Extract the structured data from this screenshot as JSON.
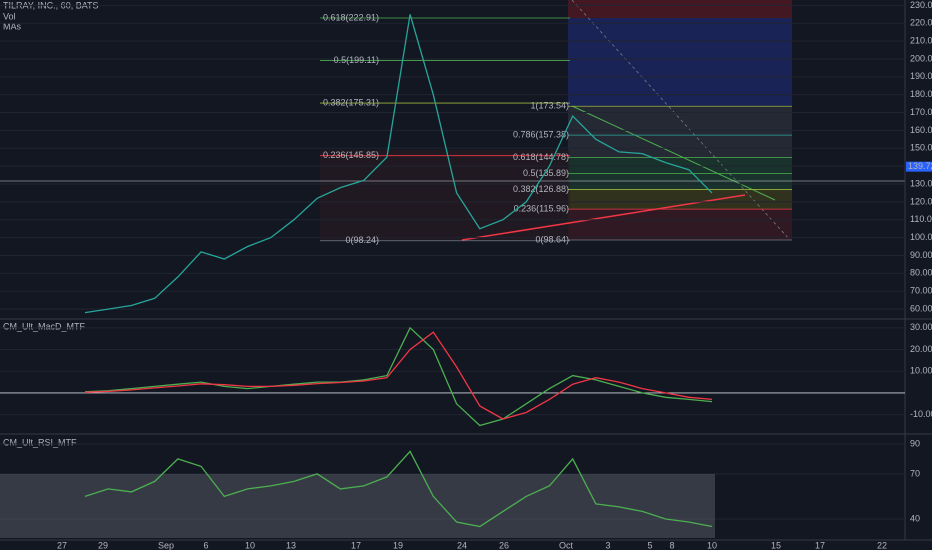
{
  "chart_data": [
    {
      "type": "line",
      "title": "TILRAY, INC., 60, BATS",
      "legend": [
        "Vol",
        "MAs"
      ],
      "series": [
        {
          "color": "#26a69a",
          "values": [
            58,
            60,
            62,
            66,
            78,
            92,
            88,
            95,
            100,
            110,
            122,
            128,
            132,
            145,
            225,
            180,
            125,
            105,
            110,
            120,
            140,
            168,
            155,
            148,
            147,
            142,
            138,
            125
          ]
        }
      ],
      "ylim": [
        55,
        233
      ],
      "yticks": [
        {
          "value": 60,
          "label": "60.00"
        },
        {
          "value": 70,
          "label": "70.00"
        },
        {
          "value": 80,
          "label": "80.00"
        },
        {
          "value": 90,
          "label": "90.00"
        },
        {
          "value": 100,
          "label": "100.00"
        },
        {
          "value": 110,
          "label": "110.00"
        },
        {
          "value": 120,
          "label": "120.00"
        },
        {
          "value": 130,
          "label": "130.00"
        },
        {
          "value": 140,
          "label": "140.00"
        },
        {
          "value": 150,
          "label": "150.00"
        },
        {
          "value": 160,
          "label": "160.00"
        },
        {
          "value": 170,
          "label": "170.00"
        },
        {
          "value": 180,
          "label": "180.00"
        },
        {
          "value": 190,
          "label": "190.00"
        },
        {
          "value": 200,
          "label": "200.00"
        },
        {
          "value": 210,
          "label": "210.00"
        },
        {
          "value": 220,
          "label": "220.00"
        },
        {
          "value": 230,
          "label": "230.00"
        }
      ],
      "fib_levels": [
        {
          "value": 222.91,
          "label": "0.618(222.91)",
          "color": "#4caf50",
          "side": "left"
        },
        {
          "value": 199.11,
          "label": "0.5(199.11)",
          "color": "#4caf50",
          "side": "left"
        },
        {
          "value": 175.31,
          "label": "0.382(175.31)",
          "color": "#9bb53a",
          "side": "left"
        },
        {
          "value": 145.85,
          "label": "0.236(145.85)",
          "color": "#f23645",
          "side": "left"
        },
        {
          "value": 98.24,
          "label": "0(98.24)",
          "color": "#787b86",
          "side": "left"
        },
        {
          "value": 173.54,
          "label": "1(173.54)",
          "color": "#9bb53a",
          "side": "right"
        },
        {
          "value": 157.38,
          "label": "0.786(157.38)",
          "color": "#26a69a",
          "side": "right"
        },
        {
          "value": 144.78,
          "label": "0.618(144.78)",
          "color": "#4caf50",
          "side": "right"
        },
        {
          "value": 135.89,
          "label": "0.5(135.89)",
          "color": "#4caf50",
          "side": "right"
        },
        {
          "value": 126.88,
          "label": "0.382(126.88)",
          "color": "#9bb53a",
          "side": "right"
        },
        {
          "value": 115.96,
          "label": "0.236(115.96)",
          "color": "#f23645",
          "side": "right"
        },
        {
          "value": 98.64,
          "label": "0(98.64)",
          "color": "#787b86",
          "side": "right"
        }
      ],
      "last_price": {
        "value": 139.72,
        "label": "139.72"
      }
    },
    {
      "type": "line",
      "title": "CM_Ult_MacD_MTF",
      "series": [
        {
          "color": "#4caf50",
          "values": [
            0.5,
            1,
            2,
            3,
            4,
            5,
            3,
            2,
            3,
            4,
            5,
            5,
            6,
            8,
            30,
            20,
            -5,
            -15,
            -12,
            -5,
            2,
            8,
            6,
            3,
            0,
            -2,
            -3,
            -4
          ]
        },
        {
          "color": "#f23645",
          "values": [
            0.3,
            0.7,
            1.4,
            2.3,
            3.2,
            4.2,
            3.8,
            3,
            3,
            3.5,
            4.3,
            4.8,
            5.5,
            7,
            20,
            28,
            12,
            -6,
            -12,
            -9,
            -3,
            4,
            7,
            5,
            2,
            0,
            -2,
            -3
          ]
        }
      ],
      "ylim": [
        -18,
        33.6
      ],
      "yticks": [
        {
          "value": 30,
          "label": "30.0000"
        },
        {
          "value": 20,
          "label": "20.0000"
        },
        {
          "value": 10,
          "label": "10.0000"
        },
        {
          "value": -10,
          "label": "-10.0000"
        }
      ]
    },
    {
      "type": "line",
      "title": "CM_Ult_RSI_MTF",
      "series": [
        {
          "color": "#4caf50",
          "values": [
            55,
            60,
            58,
            65,
            80,
            75,
            55,
            60,
            62,
            65,
            70,
            60,
            62,
            68,
            85,
            55,
            38,
            35,
            45,
            55,
            62,
            80,
            50,
            48,
            45,
            40,
            38,
            35
          ]
        }
      ],
      "ylim": [
        27.3,
        95.3
      ],
      "yticks": [
        90,
        70,
        40
      ]
    }
  ],
  "time_axis": [
    "27",
    "29",
    "Sep",
    "6",
    "10",
    "13",
    "17",
    "19",
    "24",
    "26",
    "Oct",
    "3",
    "5",
    "8",
    "10",
    "15",
    "17",
    "22"
  ]
}
